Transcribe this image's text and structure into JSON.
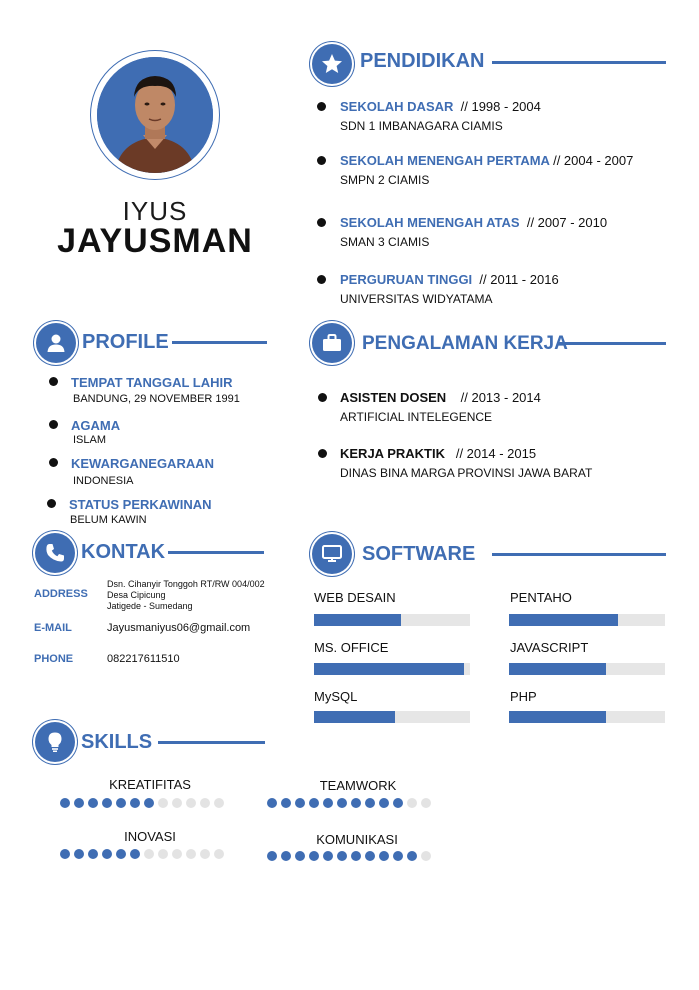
{
  "name": {
    "first": "IYUS",
    "last": "JAYUSMAN"
  },
  "pendidikan": {
    "title": "PENDIDIKAN",
    "icon": "star-icon",
    "items": [
      {
        "level": "SEKOLAH DASAR",
        "years": "// 1998 - 2004",
        "school": "SDN 1 IMBANAGARA CIAMIS"
      },
      {
        "level": "SEKOLAH MENENGAH PERTAMA",
        "years": "// 2004 - 2007",
        "school": "SMPN 2 CIAMIS"
      },
      {
        "level": "SEKOLAH MENENGAH ATAS",
        "years": "// 2007 - 2010",
        "school": "SMAN 3 CIAMIS"
      },
      {
        "level": "PERGURUAN TINGGI",
        "years": "// 2011 -  2016",
        "school": "UNIVERSITAS WIDYATAMA"
      }
    ]
  },
  "profile": {
    "title": "PROFILE",
    "icon": "user-icon",
    "items": [
      {
        "label": "TEMPAT TANGGAL LAHIR",
        "value": "BANDUNG, 29 NOVEMBER 1991"
      },
      {
        "label": "AGAMA",
        "value": "ISLAM"
      },
      {
        "label": "KEWARGANEGARAAN",
        "value": "INDONESIA"
      },
      {
        "label": "STATUS PERKAWINAN",
        "value": "BELUM KAWIN"
      }
    ]
  },
  "pengalaman": {
    "title": "PENGALAMAN KERJA",
    "icon": "briefcase-icon",
    "items": [
      {
        "role": "ASISTEN DOSEN",
        "years": "// 2013 - 2014",
        "detail": "ARTIFICIAL INTELEGENCE"
      },
      {
        "role": "KERJA PRAKTIK",
        "years": "// 2014 - 2015",
        "detail": "DINAS BINA MARGA PROVINSI JAWA BARAT"
      }
    ]
  },
  "kontak": {
    "title": "KONTAK",
    "icon": "phone-icon",
    "address_label": "ADDRESS",
    "address_lines": [
      "Dsn. Cihanyir Tonggoh RT/RW 004/002",
      "Desa Cipicung",
      "Jatigede - Sumedang"
    ],
    "email_label": "E-MAIL",
    "email": "Jayusmaniyus06@gmail.com",
    "phone_label": "PHONE",
    "phone": "082217611510"
  },
  "software": {
    "title": "SOFTWARE",
    "icon": "monitor-icon",
    "items": [
      {
        "name": "WEB DESAIN",
        "level": 0.56
      },
      {
        "name": "PENTAHO",
        "level": 0.7
      },
      {
        "name": "MS. OFFICE",
        "level": 0.96
      },
      {
        "name": "JAVASCRIPT",
        "level": 0.62
      },
      {
        "name": "MySQL",
        "level": 0.52
      },
      {
        "name": "PHP",
        "level": 0.62
      }
    ]
  },
  "skills": {
    "title": "SKILLS",
    "icon": "lightbulb-icon",
    "items": [
      {
        "name": "KREATIFITAS",
        "filled": 7,
        "total": 12
      },
      {
        "name": "TEAMWORK",
        "filled": 10,
        "total": 12
      },
      {
        "name": "INOVASI",
        "filled": 6,
        "total": 12
      },
      {
        "name": "KOMUNIKASI",
        "filled": 11,
        "total": 12
      }
    ]
  },
  "colors": {
    "accent": "#3f6db3",
    "track": "#e6e6e6",
    "dot_off": "#e3e3e3"
  }
}
